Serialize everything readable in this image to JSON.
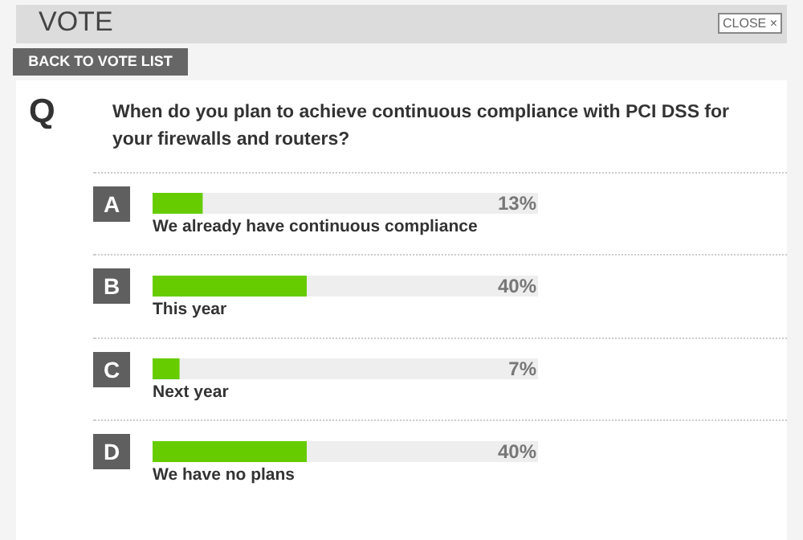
{
  "chart_data": {
    "type": "bar",
    "orientation": "horizontal",
    "title": "When do you plan to achieve continuous compliance with PCI DSS for your firewalls and routers?",
    "categories": [
      "We already have continuous compliance",
      "This year",
      "Next year",
      "We have no plans"
    ],
    "values": [
      13,
      40,
      7,
      40
    ],
    "value_labels": [
      "13%",
      "40%",
      "7%",
      "40%"
    ],
    "color": "#66cc00",
    "xlim": [
      0,
      100
    ],
    "tick_labels": false,
    "annotations": [
      "VOTE",
      "CLOSE ×",
      "BACK TO VOTE LIST",
      "Q",
      "A",
      "B",
      "C",
      "D"
    ]
  }
}
